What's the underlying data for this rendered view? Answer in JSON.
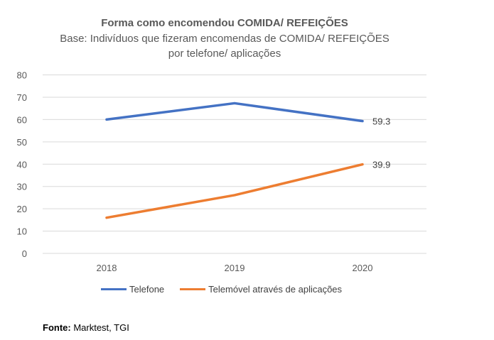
{
  "chart_data": {
    "type": "line",
    "title": "Forma como encomendou COMIDA/ REFEIÇÕES",
    "subtitle_line1": "Base: Indivíduos que fizeram encomendas de COMIDA/ REFEIÇÕES",
    "subtitle_line2": "por telefone/ aplicações",
    "categories": [
      "2018",
      "2019",
      "2020"
    ],
    "ylim": [
      0,
      80
    ],
    "yticks": [
      "0",
      "10",
      "20",
      "30",
      "40",
      "50",
      "60",
      "70",
      "80"
    ],
    "grid": true,
    "legend_position": "bottom",
    "series": [
      {
        "name": "Telefone",
        "values": [
          60,
          67.3,
          59.3
        ],
        "color": "#4472C4",
        "last_label": "59.3"
      },
      {
        "name": "Telemóvel através de aplicações",
        "values": [
          16,
          26.1,
          39.9
        ],
        "color": "#ED7D31",
        "last_label": "39.9"
      }
    ]
  },
  "source": {
    "label": "Fonte:",
    "text": " Marktest, TGI"
  }
}
